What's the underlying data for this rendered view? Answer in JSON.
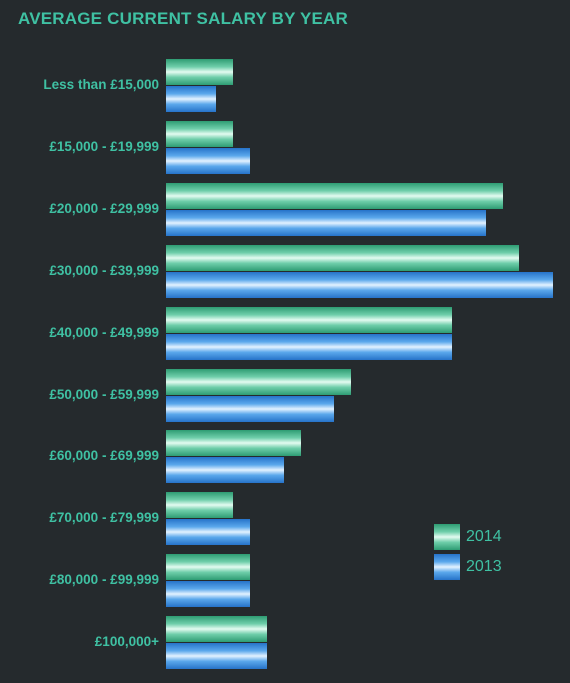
{
  "chart_data": {
    "type": "bar",
    "orientation": "horizontal",
    "title": "AVERAGE CURRENT SALARY BY YEAR",
    "categories": [
      "Less than £15,000",
      "£15,000 - £19,999",
      "£20,000 - £29,999",
      "£30,000 - £39,999",
      "£40,000 - £49,999",
      "£50,000 - £59,999",
      "£60,000 - £69,999",
      "£70,000 - £79,999",
      "£80,000 - £99,999",
      "£100,000+"
    ],
    "series": [
      {
        "name": "2014",
        "color": "#4cc09a",
        "values": [
          4,
          4,
          20,
          21,
          17,
          11,
          8,
          4,
          5,
          6
        ]
      },
      {
        "name": "2013",
        "color": "#4a9ee8",
        "values": [
          3,
          5,
          19,
          23,
          17,
          10,
          7,
          5,
          5,
          6
        ]
      }
    ],
    "xlim": [
      0,
      23
    ],
    "grid": false,
    "legend": "bottom-right"
  }
}
